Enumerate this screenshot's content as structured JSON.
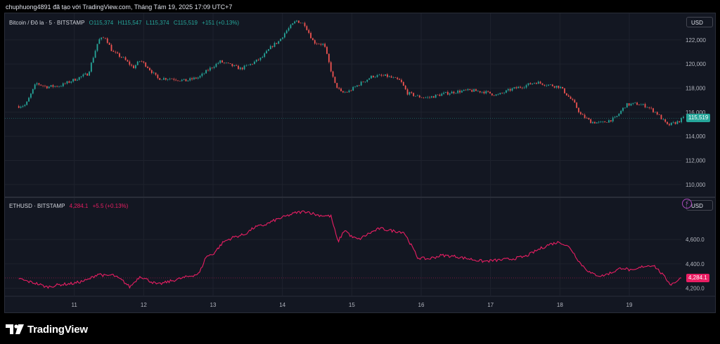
{
  "caption": "chuphuong4891 đã tạo với TradingView.com, Tháng Tám 19, 2025 17:09 UTC+7",
  "logo_text": "TradingView",
  "colors": {
    "up": "#26a69a",
    "down": "#ef5350",
    "eth_line": "#e91e63",
    "btc_price_tag": "#26a69a",
    "eth_price_tag": "#e91e63"
  },
  "chart_data": [
    {
      "type": "candlestick",
      "legend": {
        "symbol": "Bitcoin / Đô la · 5 · BITSTAMP",
        "open": "O115,374",
        "high": "H115,547",
        "low": "L115,374",
        "close": "C115,519",
        "change": "+151 (+0.13%)"
      },
      "currency": "USD",
      "last_price_label": "115,519",
      "ylim": [
        109000,
        124200
      ],
      "yticks": [
        110000,
        112000,
        114000,
        116000,
        118000,
        120000,
        122000
      ],
      "ytick_labels": [
        "110,000",
        "112,000",
        "114,000",
        "116,000",
        "118,000",
        "120,000",
        "122,000"
      ],
      "x": [
        10.2,
        10.3,
        10.45,
        10.6,
        10.8,
        11.0,
        11.2,
        11.35,
        11.45,
        11.55,
        11.7,
        11.85,
        11.95,
        12.05,
        12.2,
        12.4,
        12.6,
        12.8,
        12.95,
        13.1,
        13.25,
        13.4,
        13.55,
        13.7,
        13.85,
        13.95,
        14.05,
        14.2,
        14.32,
        14.45,
        14.6,
        14.75,
        14.85,
        14.95,
        15.1,
        15.3,
        15.5,
        15.7,
        15.8,
        15.95,
        16.1,
        16.3,
        16.5,
        16.7,
        16.9,
        17.1,
        17.3,
        17.5,
        17.65,
        17.8,
        18.0,
        18.2,
        18.3,
        18.45,
        18.6,
        18.8,
        18.95,
        19.1,
        19.25,
        19.4,
        19.55,
        19.7,
        19.78
      ],
      "y": [
        116500,
        116600,
        118400,
        118100,
        118200,
        118700,
        119200,
        122000,
        122200,
        121000,
        120500,
        119700,
        120300,
        119800,
        118800,
        118800,
        118600,
        118900,
        119600,
        120200,
        119900,
        119600,
        120000,
        120500,
        121500,
        121900,
        122700,
        123600,
        123300,
        121800,
        121600,
        118400,
        117600,
        117700,
        118300,
        119000,
        119000,
        118600,
        117600,
        117300,
        117200,
        117500,
        117700,
        117800,
        117700,
        117400,
        117900,
        118200,
        118500,
        118300,
        118100,
        116800,
        115800,
        115200,
        115100,
        115500,
        116600,
        116700,
        116500,
        115900,
        114900,
        115200,
        115500
      ]
    },
    {
      "type": "line",
      "legend": {
        "symbol": "ETHUSD · BITSTAMP",
        "price": "4,284.1",
        "change": "+5.5 (+0.13%)"
      },
      "currency": "USD",
      "last_price_label": "4,284.1",
      "ylim": [
        4140,
        4940
      ],
      "yticks": [
        4200,
        4400,
        4600
      ],
      "ytick_labels": [
        "4,200.0",
        "4,400.0",
        "4,600.0"
      ],
      "x": [
        10.2,
        10.3,
        10.45,
        10.6,
        10.8,
        11.0,
        11.2,
        11.35,
        11.45,
        11.55,
        11.7,
        11.8,
        11.95,
        12.05,
        12.2,
        12.4,
        12.6,
        12.8,
        12.9,
        13.0,
        13.15,
        13.3,
        13.45,
        13.6,
        13.75,
        13.9,
        14.05,
        14.2,
        14.35,
        14.5,
        14.7,
        14.8,
        14.9,
        15.0,
        15.1,
        15.25,
        15.4,
        15.6,
        15.75,
        15.85,
        15.95,
        16.1,
        16.3,
        16.5,
        16.7,
        16.9,
        17.1,
        17.3,
        17.5,
        17.7,
        17.85,
        18.0,
        18.15,
        18.3,
        18.45,
        18.6,
        18.75,
        18.9,
        19.05,
        19.2,
        19.35,
        19.45,
        19.6,
        19.75
      ],
      "y": [
        4280,
        4260,
        4240,
        4210,
        4230,
        4240,
        4270,
        4320,
        4300,
        4310,
        4260,
        4210,
        4300,
        4270,
        4230,
        4260,
        4290,
        4320,
        4460,
        4480,
        4580,
        4620,
        4640,
        4700,
        4720,
        4760,
        4790,
        4820,
        4830,
        4800,
        4790,
        4580,
        4680,
        4620,
        4600,
        4650,
        4690,
        4670,
        4660,
        4560,
        4450,
        4440,
        4470,
        4460,
        4440,
        4420,
        4430,
        4440,
        4460,
        4520,
        4560,
        4580,
        4530,
        4400,
        4320,
        4300,
        4330,
        4370,
        4340,
        4380,
        4390,
        4330,
        4230,
        4284
      ]
    }
  ],
  "xaxis": {
    "ticks": [
      11,
      12,
      13,
      14,
      15,
      16,
      17,
      18,
      19
    ],
    "tick_labels": [
      "11",
      "12",
      "13",
      "14",
      "15",
      "16",
      "17",
      "18",
      "19"
    ]
  }
}
